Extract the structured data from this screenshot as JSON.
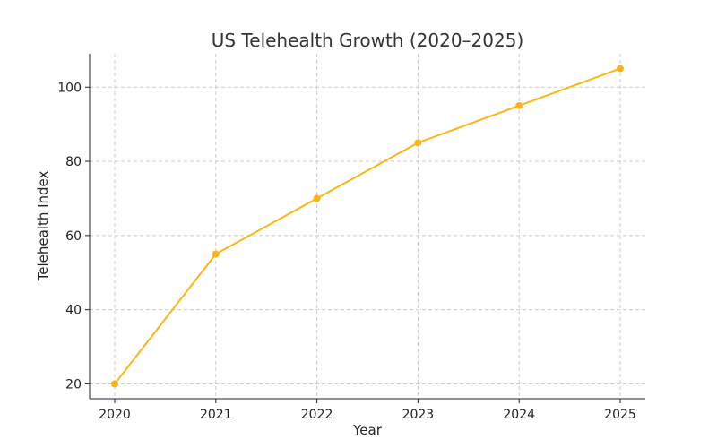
{
  "chart_data": {
    "type": "line",
    "title": "US Telehealth Growth (2020–2025)",
    "xlabel": "Year",
    "ylabel": "Telehealth Index",
    "x": [
      "2020",
      "2021",
      "2022",
      "2023",
      "2024",
      "2025"
    ],
    "y_ticks": [
      "20",
      "40",
      "60",
      "80",
      "100"
    ],
    "ylim": [
      16,
      109
    ],
    "grid": true,
    "series": [
      {
        "values": [
          20,
          55,
          70,
          85,
          95,
          105
        ],
        "color": "#FBB614",
        "marker": "circle"
      }
    ]
  }
}
